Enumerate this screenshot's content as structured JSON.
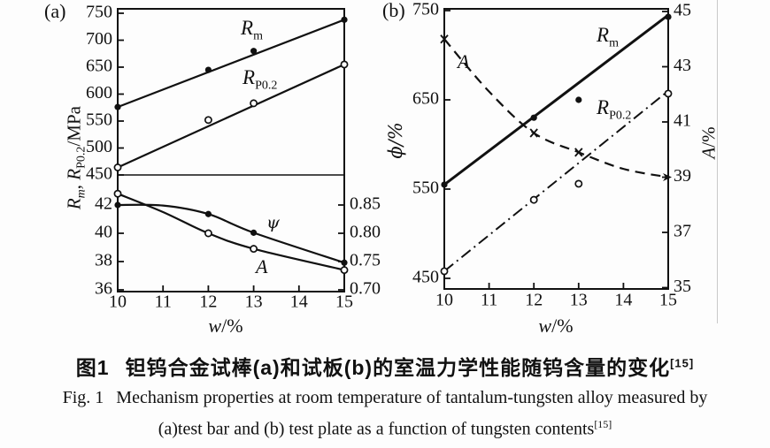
{
  "figure_colors": {
    "ink": "#111111",
    "background": "#fdfdfd",
    "scan_divider": "#c9c9c9"
  },
  "panel_a": {
    "tag": "(a)",
    "ylabel": {
      "r1": "R",
      "s1": "m",
      "sep": ", ",
      "r2": "R",
      "s2": "P0.2",
      "unit": "/MPa"
    },
    "xlabel": {
      "sym": "w",
      "unit": "/%"
    },
    "labels": {
      "rm": {
        "base": "R",
        "sub": "m"
      },
      "rp": {
        "base": "R",
        "sub": "P0.2"
      },
      "psi": "ψ",
      "a": "A"
    }
  },
  "panel_b": {
    "tag": "(b)",
    "left_label": "ϕ/%",
    "right_label": {
      "sym": "A",
      "unit": "/%"
    },
    "xlabel": {
      "sym": "w",
      "unit": "/%"
    },
    "labels": {
      "rm": {
        "base": "R",
        "sub": "m"
      },
      "rp": {
        "base": "R",
        "sub": "P0.2"
      },
      "a": "A"
    }
  },
  "caption": {
    "zh": {
      "fig": "图1",
      "text": "钽钨合金试棒(a)和试板(b)的室温力学性能随钨含量的变化",
      "ref": "[15]"
    },
    "en1": {
      "fig": "Fig. 1",
      "text": "Mechanism properties at room temperature of tantalum-tungsten alloy measured by"
    },
    "en2": {
      "text": "(a)test bar and (b) test plate as a function of tungsten contents",
      "ref": "[15]"
    }
  },
  "chart_data": [
    {
      "id": "a",
      "type": "line",
      "title": "(a) test bar: mechanical properties vs tungsten content",
      "xlabel": "w/%",
      "x_ticks": [
        10,
        11,
        12,
        13,
        14,
        15
      ],
      "xlim": [
        10,
        15
      ],
      "upper": {
        "ylabel": "Rm, RP0.2 /MPa",
        "ylim": [
          450,
          758
        ],
        "y_ticks": [
          750,
          700,
          650,
          600,
          550,
          500,
          450
        ],
        "grid": false,
        "series": [
          {
            "name": "Rm",
            "marker": "filled",
            "line": "solid",
            "x": [
              10,
              12,
              13,
              15
            ],
            "y": [
              576,
              645,
              680,
              738
            ],
            "trend_x": [
              10,
              15
            ],
            "trend_y": [
              576,
              738
            ]
          },
          {
            "name": "RP0.2",
            "marker": "open",
            "line": "solid",
            "x": [
              10,
              12,
              13,
              15
            ],
            "y": [
              464,
              552,
              583,
              655
            ],
            "trend_x": [
              10,
              15
            ],
            "trend_y": [
              464,
              655
            ]
          }
        ]
      },
      "lower": {
        "left_ticks": [
          42,
          40,
          38,
          36
        ],
        "right_ticks": [
          "0.85",
          "0.80",
          "0.75",
          "0.70"
        ],
        "left_ylim": [
          36,
          44
        ],
        "right_ylim": [
          0.7,
          0.9
        ],
        "series": [
          {
            "name": "psi",
            "axis": "right",
            "marker": "filled",
            "line": "solid",
            "x": [
              10,
              12,
              13,
              15
            ],
            "y": [
              0.85,
              0.834,
              0.801,
              0.748
            ],
            "path_x": [
              10,
              11,
              12,
              13,
              15
            ],
            "path_y": [
              0.85,
              0.849,
              0.834,
              0.801,
              0.748
            ]
          },
          {
            "name": "A",
            "axis": "left",
            "marker": "open",
            "line": "solid",
            "x": [
              10,
              12,
              13,
              15
            ],
            "y": [
              42.8,
              40.0,
              38.9,
              37.4
            ],
            "path_x": [
              10,
              11,
              12,
              13,
              15
            ],
            "path_y": [
              42.8,
              41.5,
              40.0,
              38.9,
              37.4
            ]
          }
        ]
      }
    },
    {
      "id": "b",
      "type": "line",
      "title": "(b) test plate: mechanical properties vs tungsten content",
      "xlabel": "w/%",
      "x_ticks": [
        10,
        11,
        12,
        13,
        14,
        15
      ],
      "xlim": [
        10,
        15
      ],
      "left_label": "ϕ/%",
      "right_label": "A/%",
      "left_ticks": [
        750,
        650,
        550,
        450
      ],
      "right_ticks": [
        45,
        43,
        41,
        39,
        37,
        35
      ],
      "left_ylim": [
        450,
        753
      ],
      "right_ylim": [
        35,
        45
      ],
      "grid": false,
      "series": [
        {
          "name": "Rm",
          "axis": "left",
          "marker": "filled",
          "line": "solid",
          "width": 3,
          "x": [
            10,
            12,
            13,
            15
          ],
          "y": [
            555,
            630,
            650,
            743
          ],
          "trend_x": [
            10,
            15
          ],
          "trend_y": [
            555,
            745
          ]
        },
        {
          "name": "A",
          "axis": "right",
          "marker": "x",
          "markers": [
            "x",
            "x",
            "x",
            "arrow"
          ],
          "line": "dashed",
          "x": [
            10,
            12,
            13,
            15
          ],
          "y": [
            44.0,
            40.6,
            39.9,
            39.0
          ],
          "path_x": [
            10,
            11,
            12,
            13,
            14,
            15
          ],
          "path_y": [
            44.0,
            42.1,
            40.6,
            39.9,
            39.3,
            39.0
          ]
        },
        {
          "name": "RP0.2",
          "axis": "left",
          "marker": "open",
          "line": "dashdot",
          "x": [
            10,
            12,
            13,
            15
          ],
          "y": [
            458,
            538,
            556,
            657
          ],
          "trend_x": [
            10,
            15
          ],
          "trend_y": [
            458,
            660
          ]
        }
      ]
    }
  ]
}
